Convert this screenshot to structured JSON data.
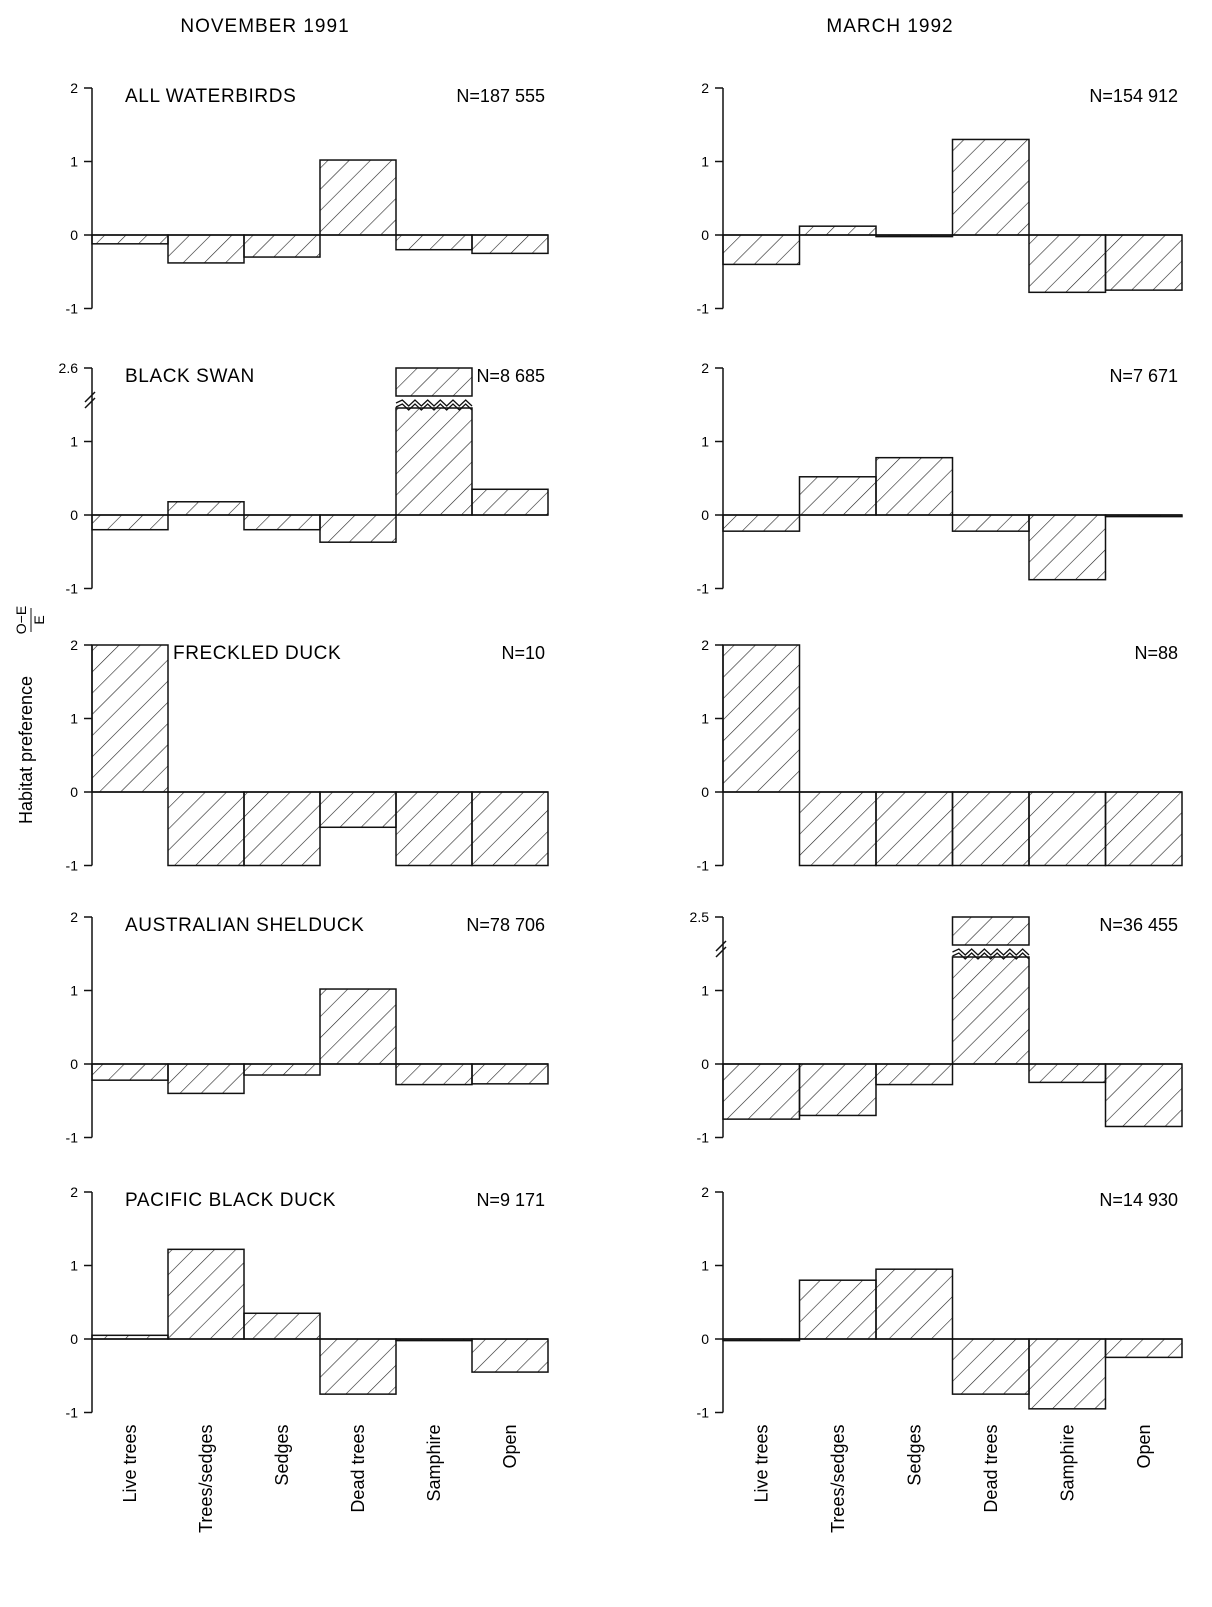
{
  "figure": {
    "ylabel": "Habitat preference",
    "ylabel_formula_num": "O−E",
    "ylabel_formula_den": "E"
  },
  "chart_data": [
    {
      "type": "bar",
      "column": "NOVEMBER  1991",
      "title": "ALL WATERBIRDS",
      "n_label": "N=187 555",
      "categories": [
        "Live trees",
        "Trees/sedges",
        "Sedges",
        "Dead trees",
        "Samphire",
        "Open"
      ],
      "values": [
        -0.12,
        -0.38,
        -0.3,
        1.02,
        -0.2,
        -0.25
      ],
      "ylim": [
        -1,
        2
      ],
      "yticks": [
        "-1",
        "0",
        "1",
        "2"
      ]
    },
    {
      "type": "bar",
      "column": "NOVEMBER  1991",
      "title": "BLACK SWAN",
      "n_label": "N=8 685",
      "categories": [
        "Live trees",
        "Trees/sedges",
        "Sedges",
        "Dead trees",
        "Samphire",
        "Open"
      ],
      "values": [
        -0.2,
        0.18,
        -0.2,
        -0.37,
        2.6,
        0.35
      ],
      "ylim": [
        -1,
        2
      ],
      "yticks": [
        "-1",
        "0",
        "1",
        "2.6"
      ],
      "axis_break": true
    },
    {
      "type": "bar",
      "column": "NOVEMBER  1991",
      "title": "FRECKLED DUCK",
      "n_label": "N=10",
      "categories": [
        "Live trees",
        "Trees/sedges",
        "Sedges",
        "Dead trees",
        "Samphire",
        "Open"
      ],
      "values": [
        2.0,
        -1.0,
        -1.0,
        -0.48,
        -1.0,
        -1.0
      ],
      "ylim": [
        -1,
        2
      ],
      "yticks": [
        "-1",
        "0",
        "1",
        "2"
      ]
    },
    {
      "type": "bar",
      "column": "NOVEMBER  1991",
      "title": "AUSTRALIAN SHELDUCK",
      "n_label": "N=78 706",
      "categories": [
        "Live trees",
        "Trees/sedges",
        "Sedges",
        "Dead trees",
        "Samphire",
        "Open"
      ],
      "values": [
        -0.22,
        -0.4,
        -0.15,
        1.02,
        -0.28,
        -0.27
      ],
      "ylim": [
        -1,
        2
      ],
      "yticks": [
        "-1",
        "0",
        "1",
        "2"
      ]
    },
    {
      "type": "bar",
      "column": "NOVEMBER  1991",
      "title": "PACIFIC BLACK DUCK",
      "n_label": "N=9 171",
      "categories": [
        "Live trees",
        "Trees/sedges",
        "Sedges",
        "Dead trees",
        "Samphire",
        "Open"
      ],
      "values": [
        0.05,
        1.22,
        0.35,
        -0.75,
        -0.02,
        -0.45
      ],
      "ylim": [
        -1,
        2
      ],
      "yticks": [
        "-1",
        "0",
        "1",
        "2"
      ]
    },
    {
      "type": "bar",
      "column": "MARCH  1992",
      "title": "",
      "n_label": "N=154 912",
      "categories": [
        "Live trees",
        "Trees/sedges",
        "Sedges",
        "Dead trees",
        "Samphire",
        "Open"
      ],
      "values": [
        -0.4,
        0.12,
        -0.02,
        1.3,
        -0.78,
        -0.75
      ],
      "ylim": [
        -1,
        2
      ],
      "yticks": [
        "-1",
        "0",
        "1",
        "2"
      ]
    },
    {
      "type": "bar",
      "column": "MARCH  1992",
      "title": "",
      "n_label": "N=7 671",
      "categories": [
        "Live trees",
        "Trees/sedges",
        "Sedges",
        "Dead trees",
        "Samphire",
        "Open"
      ],
      "values": [
        -0.22,
        0.52,
        0.78,
        -0.22,
        -0.88,
        0.0
      ],
      "ylim": [
        -1,
        2
      ],
      "yticks": [
        "-1",
        "0",
        "1",
        "2"
      ]
    },
    {
      "type": "bar",
      "column": "MARCH  1992",
      "title": "",
      "n_label": "N=88",
      "categories": [
        "Live trees",
        "Trees/sedges",
        "Sedges",
        "Dead trees",
        "Samphire",
        "Open"
      ],
      "values": [
        2.0,
        -1.0,
        -1.0,
        -1.0,
        -1.0,
        -1.0
      ],
      "ylim": [
        -1,
        2
      ],
      "yticks": [
        "-1",
        "0",
        "1",
        "2"
      ]
    },
    {
      "type": "bar",
      "column": "MARCH  1992",
      "title": "",
      "n_label": "N=36 455",
      "categories": [
        "Live trees",
        "Trees/sedges",
        "Sedges",
        "Dead trees",
        "Samphire",
        "Open"
      ],
      "values": [
        -0.75,
        -0.7,
        -0.28,
        2.5,
        -0.25,
        -0.85
      ],
      "ylim": [
        -1,
        2
      ],
      "yticks": [
        "-1",
        "0",
        "1",
        "2.5"
      ],
      "axis_break": true
    },
    {
      "type": "bar",
      "column": "MARCH  1992",
      "title": "",
      "n_label": "N=14 930",
      "categories": [
        "Live trees",
        "Trees/sedges",
        "Sedges",
        "Dead trees",
        "Samphire",
        "Open"
      ],
      "values": [
        0.0,
        0.8,
        0.95,
        -0.75,
        -0.95,
        -0.25
      ],
      "ylim": [
        -1,
        2
      ],
      "yticks": [
        "-1",
        "0",
        "1",
        "2"
      ]
    }
  ]
}
